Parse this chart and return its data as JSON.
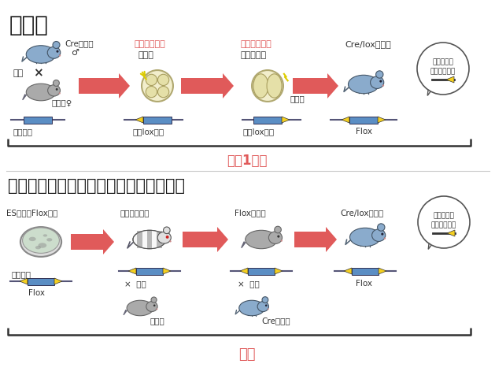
{
  "title1": "新規法",
  "title2": "現行の条件付きノックアウトマウス作製",
  "bg_color": "#ffffff",
  "section1_time": "最短1ヵ月",
  "section2_time": "数年",
  "arrow_color": "#e05a5a",
  "text_red": "#e05a5a",
  "text_black": "#333333",
  "dna_bar_color": "#5b8ec4",
  "dna_triangle_color": "#f5d020",
  "box_outline": "#888888"
}
